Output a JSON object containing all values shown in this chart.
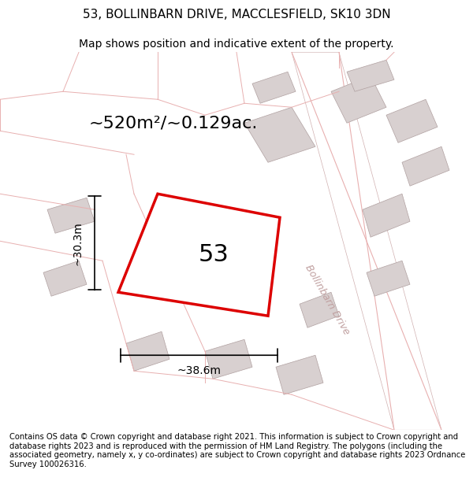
{
  "title_line1": "53, BOLLINBARN DRIVE, MACCLESFIELD, SK10 3DN",
  "title_line2": "Map shows position and indicative extent of the property.",
  "area_label": "~520m²/~0.129ac.",
  "plot_number": "53",
  "dim_width": "~38.6m",
  "dim_height": "~30.3m",
  "street_label": "Bollinbarn Drive",
  "footer_text": "Contains OS data © Crown copyright and database right 2021. This information is subject to Crown copyright and database rights 2023 and is reproduced with the permission of HM Land Registry. The polygons (including the associated geometry, namely x, y co-ordinates) are subject to Crown copyright and database rights 2023 Ordnance Survey 100026316.",
  "bg_color": "#ffffff",
  "map_bg": "#f5f0f0",
  "building_color": "#d8d0d0",
  "road_color": "#ffffff",
  "boundary_color": "#e8b0b0",
  "plot_outline_color": "#dd0000",
  "dim_color": "#000000",
  "title_color": "#000000",
  "footer_color": "#000000",
  "label_color": "#000000",
  "street_text_color": "#c0a0a0"
}
